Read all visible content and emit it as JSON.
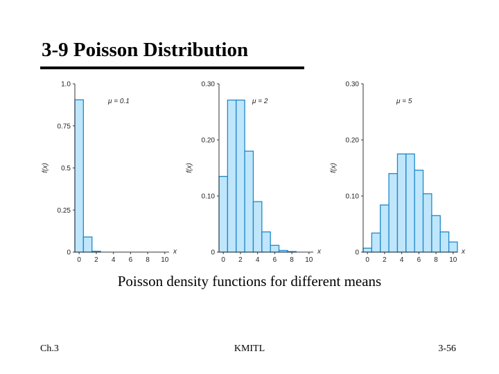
{
  "slide": {
    "title": "3-9 Poisson Distribution",
    "caption": "Poisson density functions for different means",
    "footer_left": "Ch.3",
    "footer_center": "KMITL",
    "footer_right": "3-56"
  },
  "colors": {
    "bar_fill": "#bfe6fb",
    "bar_stroke": "#1e88c8",
    "axis": "#333333"
  },
  "chart_data": [
    {
      "type": "bar",
      "title": "μ = 0.1",
      "xlabel": "x",
      "ylabel": "f(x)",
      "ylim": [
        0,
        1.0
      ],
      "yticks": [
        0,
        0.25,
        0.5,
        0.75,
        1.0
      ],
      "ytick_labels": [
        "0",
        "0.25",
        "0.5",
        "0.75",
        "1.0"
      ],
      "xticks": [
        0,
        2,
        4,
        6,
        8,
        10
      ],
      "x": [
        0,
        1,
        2,
        3,
        4,
        5,
        6,
        7,
        8,
        9,
        10
      ],
      "values": [
        0.905,
        0.09,
        0.005,
        0,
        0,
        0,
        0,
        0,
        0,
        0,
        0
      ]
    },
    {
      "type": "bar",
      "title": "μ = 2",
      "xlabel": "x",
      "ylabel": "f(x)",
      "ylim": [
        0,
        0.3
      ],
      "yticks": [
        0,
        0.1,
        0.2,
        0.3
      ],
      "ytick_labels": [
        "0",
        "0.10",
        "0.20",
        "0.30"
      ],
      "xticks": [
        0,
        2,
        4,
        6,
        8,
        10
      ],
      "x": [
        0,
        1,
        2,
        3,
        4,
        5,
        6,
        7,
        8,
        9,
        10
      ],
      "values": [
        0.135,
        0.271,
        0.271,
        0.18,
        0.09,
        0.036,
        0.012,
        0.003,
        0.001,
        0,
        0
      ]
    },
    {
      "type": "bar",
      "title": "μ = 5",
      "xlabel": "x",
      "ylabel": "f(x)",
      "ylim": [
        0,
        0.3
      ],
      "yticks": [
        0,
        0.1,
        0.2,
        0.3
      ],
      "ytick_labels": [
        "0",
        "0.10",
        "0.20",
        "0.30"
      ],
      "xticks": [
        0,
        2,
        4,
        6,
        8,
        10
      ],
      "x": [
        0,
        1,
        2,
        3,
        4,
        5,
        6,
        7,
        8,
        9,
        10
      ],
      "values": [
        0.007,
        0.034,
        0.084,
        0.14,
        0.175,
        0.175,
        0.146,
        0.104,
        0.065,
        0.036,
        0.018
      ]
    }
  ]
}
